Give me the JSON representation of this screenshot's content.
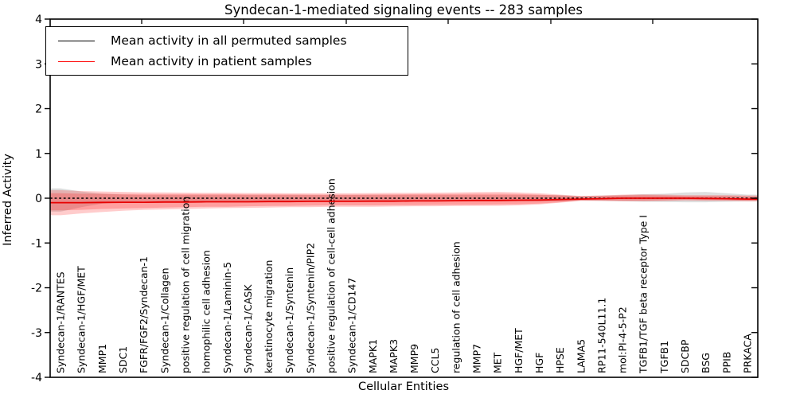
{
  "title": "Syndecan-1-mediated signaling events -- 283 samples",
  "ylabel": "Inferred Activity",
  "xlabel": "Cellular Entities",
  "yticks": [
    "4",
    "3",
    "2",
    "1",
    "0",
    "-1",
    "-2",
    "-3",
    "-4"
  ],
  "legend": {
    "items": [
      {
        "label": "Mean activity in all permuted samples",
        "color": "#000000"
      },
      {
        "label": "Mean activity in patient samples",
        "color": "#ff0000"
      }
    ]
  },
  "chart_data": {
    "type": "line",
    "title": "Syndecan-1-mediated signaling events -- 283 samples",
    "xlabel": "Cellular Entities",
    "ylabel": "Inferred Activity",
    "ylim": [
      -4,
      4
    ],
    "ytick_values": [
      4,
      3,
      2,
      1,
      0,
      -1,
      -2,
      -3,
      -4
    ],
    "grid": false,
    "legend_position": "upper left",
    "categories": [
      "Syndecan-1/RANTES",
      "Syndecan-1/HGF/MET",
      "MMP1",
      "SDC1",
      "FGFR/FGF2/Syndecan-1",
      "Syndecan-1/Collagen",
      "positive regulation of cell migration",
      "homophilic cell adhesion",
      "Syndecan-1/Laminin-5",
      "Syndecan-1/CASK",
      "keratinocyte migration",
      "Syndecan-1/Syntenin",
      "Syndecan-1/Syntenin/PIP2",
      "positive regulation of cell-cell adhesion",
      "Syndecan-1/CD147",
      "MAPK1",
      "MAPK3",
      "MMP9",
      "CCL5",
      "regulation of cell adhesion",
      "MMP7",
      "MET",
      "HGF/MET",
      "HGF",
      "HPSE",
      "LAMA5",
      "RP11-540L11.1",
      "mol:PI-4-5-P2",
      "TGFB1/TGF beta receptor Type I",
      "TGFB1",
      "SDCBP",
      "BSG",
      "PPIB",
      "PRKACA"
    ],
    "series": [
      {
        "name": "Mean activity in all permuted samples",
        "color": "#000000",
        "linestyle": "dashed",
        "values": [
          0,
          0,
          0,
          0,
          0,
          0,
          0,
          0,
          0,
          0,
          0,
          0,
          0,
          0,
          0,
          0,
          0,
          0,
          0,
          0,
          0,
          0,
          0,
          0,
          0,
          0,
          0,
          0,
          0,
          0,
          0,
          0,
          0,
          0
        ],
        "band": {
          "color": "#000000",
          "opacity": 0.13,
          "upper": [
            0.22,
            0.15,
            0.1,
            0.08,
            0.07,
            0.07,
            0.07,
            0.07,
            0.07,
            0.07,
            0.07,
            0.07,
            0.07,
            0.07,
            0.07,
            0.07,
            0.07,
            0.07,
            0.07,
            0.07,
            0.07,
            0.07,
            0.07,
            0.07,
            0.07,
            0.05,
            0.06,
            0.07,
            0.09,
            0.1,
            0.13,
            0.14,
            0.11,
            0.08
          ],
          "lower": [
            -0.3,
            -0.2,
            -0.12,
            -0.09,
            -0.07,
            -0.07,
            -0.07,
            -0.07,
            -0.07,
            -0.07,
            -0.07,
            -0.07,
            -0.07,
            -0.07,
            -0.07,
            -0.07,
            -0.07,
            -0.07,
            -0.07,
            -0.07,
            -0.07,
            -0.07,
            -0.07,
            -0.07,
            -0.07,
            -0.05,
            -0.06,
            -0.07,
            -0.08,
            -0.085,
            -0.09,
            -0.09,
            -0.08,
            -0.07
          ]
        }
      },
      {
        "name": "Mean activity in patient samples",
        "color": "#e80000",
        "linestyle": "solid",
        "values": [
          -0.1,
          -0.1,
          -0.095,
          -0.09,
          -0.09,
          -0.085,
          -0.085,
          -0.08,
          -0.08,
          -0.08,
          -0.075,
          -0.075,
          -0.07,
          -0.07,
          -0.07,
          -0.065,
          -0.065,
          -0.06,
          -0.06,
          -0.055,
          -0.05,
          -0.05,
          -0.045,
          -0.04,
          -0.03,
          -0.02,
          -0.01,
          0,
          0,
          0,
          0,
          -0.005,
          -0.01,
          -0.02
        ],
        "band_outer": {
          "color": "#ff0000",
          "opacity": 0.2,
          "upper": [
            0.18,
            0.16,
            0.15,
            0.14,
            0.13,
            0.13,
            0.125,
            0.12,
            0.12,
            0.115,
            0.115,
            0.11,
            0.11,
            0.11,
            0.11,
            0.115,
            0.12,
            0.12,
            0.125,
            0.13,
            0.135,
            0.14,
            0.13,
            0.11,
            0.08,
            0.05,
            0.06,
            0.08,
            0.085,
            0.08,
            0.07,
            0.07,
            0.07,
            0.06
          ],
          "lower": [
            -0.38,
            -0.34,
            -0.31,
            -0.28,
            -0.26,
            -0.25,
            -0.24,
            -0.23,
            -0.22,
            -0.215,
            -0.21,
            -0.2,
            -0.2,
            -0.19,
            -0.19,
            -0.19,
            -0.185,
            -0.18,
            -0.18,
            -0.175,
            -0.17,
            -0.17,
            -0.16,
            -0.14,
            -0.1,
            -0.06,
            -0.06,
            -0.065,
            -0.065,
            -0.06,
            -0.05,
            -0.055,
            -0.06,
            -0.07
          ]
        },
        "band_inner": {
          "color": "#ff0000",
          "opacity": 0.22,
          "upper": [
            0.11,
            0.1,
            0.1,
            0.095,
            0.095,
            0.09,
            0.09,
            0.09,
            0.09,
            0.085,
            0.085,
            0.085,
            0.08,
            0.08,
            0.08,
            0.085,
            0.085,
            0.09,
            0.09,
            0.095,
            0.1,
            0.1,
            0.095,
            0.08,
            0.06,
            0.04,
            0.05,
            0.06,
            0.065,
            0.06,
            0.05,
            0.05,
            0.05,
            0.04
          ],
          "lower": [
            -0.27,
            -0.26,
            -0.24,
            -0.23,
            -0.22,
            -0.21,
            -0.2,
            -0.19,
            -0.19,
            -0.18,
            -0.175,
            -0.17,
            -0.165,
            -0.16,
            -0.16,
            -0.16,
            -0.155,
            -0.155,
            -0.15,
            -0.15,
            -0.145,
            -0.14,
            -0.135,
            -0.12,
            -0.09,
            -0.05,
            -0.05,
            -0.055,
            -0.055,
            -0.05,
            -0.04,
            -0.045,
            -0.05,
            -0.06
          ]
        }
      }
    ]
  }
}
